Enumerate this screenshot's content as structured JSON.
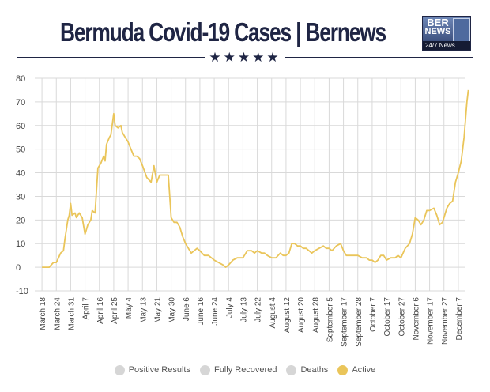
{
  "header": {
    "title": "Bermuda Covid-19 Cases | Bernews",
    "stars": "★★★★★",
    "logo": {
      "line1": "BER",
      "line2": "NEWS",
      "tagline": "24/7 News"
    }
  },
  "colors": {
    "title": "#1f2544",
    "active": "#eac55a",
    "inactive_legend": "#d6d6d6",
    "grid": "#d9d9d9"
  },
  "chart_data": {
    "type": "line",
    "title": "Bermuda Covid-19 Cases | Bernews",
    "xlabel": "",
    "ylabel": "",
    "ylim": [
      -10,
      80
    ],
    "yticks": [
      -10,
      0,
      10,
      20,
      30,
      40,
      50,
      60,
      70,
      80
    ],
    "grid": true,
    "legend_position": "bottom",
    "categories": [
      "March 18",
      "March 24",
      "March 31",
      "April 7",
      "April 16",
      "April 25",
      "May 4",
      "May 13",
      "May 21",
      "May 30",
      "June 6",
      "June 16",
      "June 24",
      "July 4",
      "July 13",
      "July 22",
      "August 4",
      "August 12",
      "August 20",
      "August 28",
      "September 5",
      "September 17",
      "September 28",
      "October 7",
      "October 17",
      "October 27",
      "November 6",
      "November 17",
      "November 27",
      "December 7"
    ],
    "legend": [
      {
        "name": "Positive Results",
        "color": "#d6d6d6"
      },
      {
        "name": "Fully Recovered",
        "color": "#d6d6d6"
      },
      {
        "name": "Deaths",
        "color": "#d6d6d6"
      },
      {
        "name": "Active",
        "color": "#eac55a"
      }
    ],
    "series": [
      {
        "name": "Active",
        "color": "#eac55a",
        "values": [
          [
            0,
            0
          ],
          [
            0.5,
            0
          ],
          [
            0.8,
            2
          ],
          [
            1,
            2
          ],
          [
            1.3,
            6
          ],
          [
            1.5,
            7
          ],
          [
            1.6,
            12
          ],
          [
            1.7,
            16
          ],
          [
            1.8,
            20
          ],
          [
            1.9,
            22
          ],
          [
            2,
            27
          ],
          [
            2.1,
            22
          ],
          [
            2.3,
            23
          ],
          [
            2.4,
            21
          ],
          [
            2.6,
            23
          ],
          [
            2.8,
            21
          ],
          [
            3,
            14
          ],
          [
            3.2,
            18
          ],
          [
            3.4,
            20
          ],
          [
            3.5,
            24
          ],
          [
            3.7,
            23
          ],
          [
            3.9,
            42
          ],
          [
            4.1,
            44
          ],
          [
            4.3,
            47
          ],
          [
            4.4,
            45
          ],
          [
            4.5,
            52
          ],
          [
            4.7,
            55
          ],
          [
            4.8,
            56
          ],
          [
            5,
            65
          ],
          [
            5.1,
            60
          ],
          [
            5.3,
            59
          ],
          [
            5.5,
            60
          ],
          [
            5.6,
            57
          ],
          [
            5.8,
            55
          ],
          [
            6,
            53
          ],
          [
            6.2,
            50
          ],
          [
            6.4,
            47
          ],
          [
            6.6,
            47
          ],
          [
            6.8,
            46
          ],
          [
            7,
            43
          ],
          [
            7.3,
            38
          ],
          [
            7.6,
            36
          ],
          [
            7.8,
            43
          ],
          [
            8,
            36
          ],
          [
            8.2,
            39
          ],
          [
            8.5,
            39
          ],
          [
            8.8,
            39
          ],
          [
            9,
            21
          ],
          [
            9.2,
            19
          ],
          [
            9.4,
            19
          ],
          [
            9.6,
            17
          ],
          [
            9.8,
            13
          ],
          [
            10,
            10
          ],
          [
            10.2,
            8
          ],
          [
            10.4,
            6
          ],
          [
            10.6,
            7
          ],
          [
            10.8,
            8
          ],
          [
            11,
            7
          ],
          [
            11.3,
            5
          ],
          [
            11.6,
            5
          ],
          [
            11.8,
            4
          ],
          [
            12,
            3
          ],
          [
            12.3,
            2
          ],
          [
            12.6,
            1
          ],
          [
            12.8,
            0
          ],
          [
            13,
            1
          ],
          [
            13.3,
            3
          ],
          [
            13.6,
            4
          ],
          [
            13.8,
            4
          ],
          [
            14,
            4
          ],
          [
            14.3,
            7
          ],
          [
            14.6,
            7
          ],
          [
            14.8,
            6
          ],
          [
            15,
            7
          ],
          [
            15.3,
            6
          ],
          [
            15.5,
            6
          ],
          [
            15.7,
            5
          ],
          [
            16,
            4
          ],
          [
            16.3,
            4
          ],
          [
            16.6,
            6
          ],
          [
            16.8,
            5
          ],
          [
            17,
            5
          ],
          [
            17.2,
            6
          ],
          [
            17.4,
            10
          ],
          [
            17.6,
            10
          ],
          [
            17.8,
            9
          ],
          [
            18,
            9
          ],
          [
            18.2,
            8
          ],
          [
            18.4,
            8
          ],
          [
            18.6,
            7
          ],
          [
            18.8,
            6
          ],
          [
            19,
            7
          ],
          [
            19.3,
            8
          ],
          [
            19.6,
            9
          ],
          [
            19.8,
            8
          ],
          [
            20,
            8
          ],
          [
            20.2,
            7
          ],
          [
            20.5,
            9
          ],
          [
            20.8,
            10
          ],
          [
            21,
            7
          ],
          [
            21.2,
            5
          ],
          [
            21.4,
            5
          ],
          [
            21.7,
            5
          ],
          [
            22,
            5
          ],
          [
            22.3,
            4
          ],
          [
            22.6,
            4
          ],
          [
            22.8,
            3
          ],
          [
            23,
            3
          ],
          [
            23.2,
            2
          ],
          [
            23.4,
            3
          ],
          [
            23.6,
            5
          ],
          [
            23.8,
            5
          ],
          [
            24,
            3
          ],
          [
            24.3,
            4
          ],
          [
            24.6,
            4
          ],
          [
            24.8,
            5
          ],
          [
            25,
            4
          ],
          [
            25.3,
            8
          ],
          [
            25.6,
            10
          ],
          [
            25.8,
            14
          ],
          [
            26,
            21
          ],
          [
            26.2,
            20
          ],
          [
            26.4,
            18
          ],
          [
            26.6,
            20
          ],
          [
            26.8,
            24
          ],
          [
            27,
            24
          ],
          [
            27.3,
            25
          ],
          [
            27.5,
            22
          ],
          [
            27.7,
            18
          ],
          [
            27.9,
            19
          ],
          [
            28.2,
            25
          ],
          [
            28.4,
            27
          ],
          [
            28.6,
            28
          ],
          [
            28.8,
            36
          ],
          [
            29,
            40
          ],
          [
            29.2,
            45
          ],
          [
            29.4,
            55
          ],
          [
            29.6,
            70
          ],
          [
            29.7,
            75
          ]
        ]
      }
    ]
  }
}
